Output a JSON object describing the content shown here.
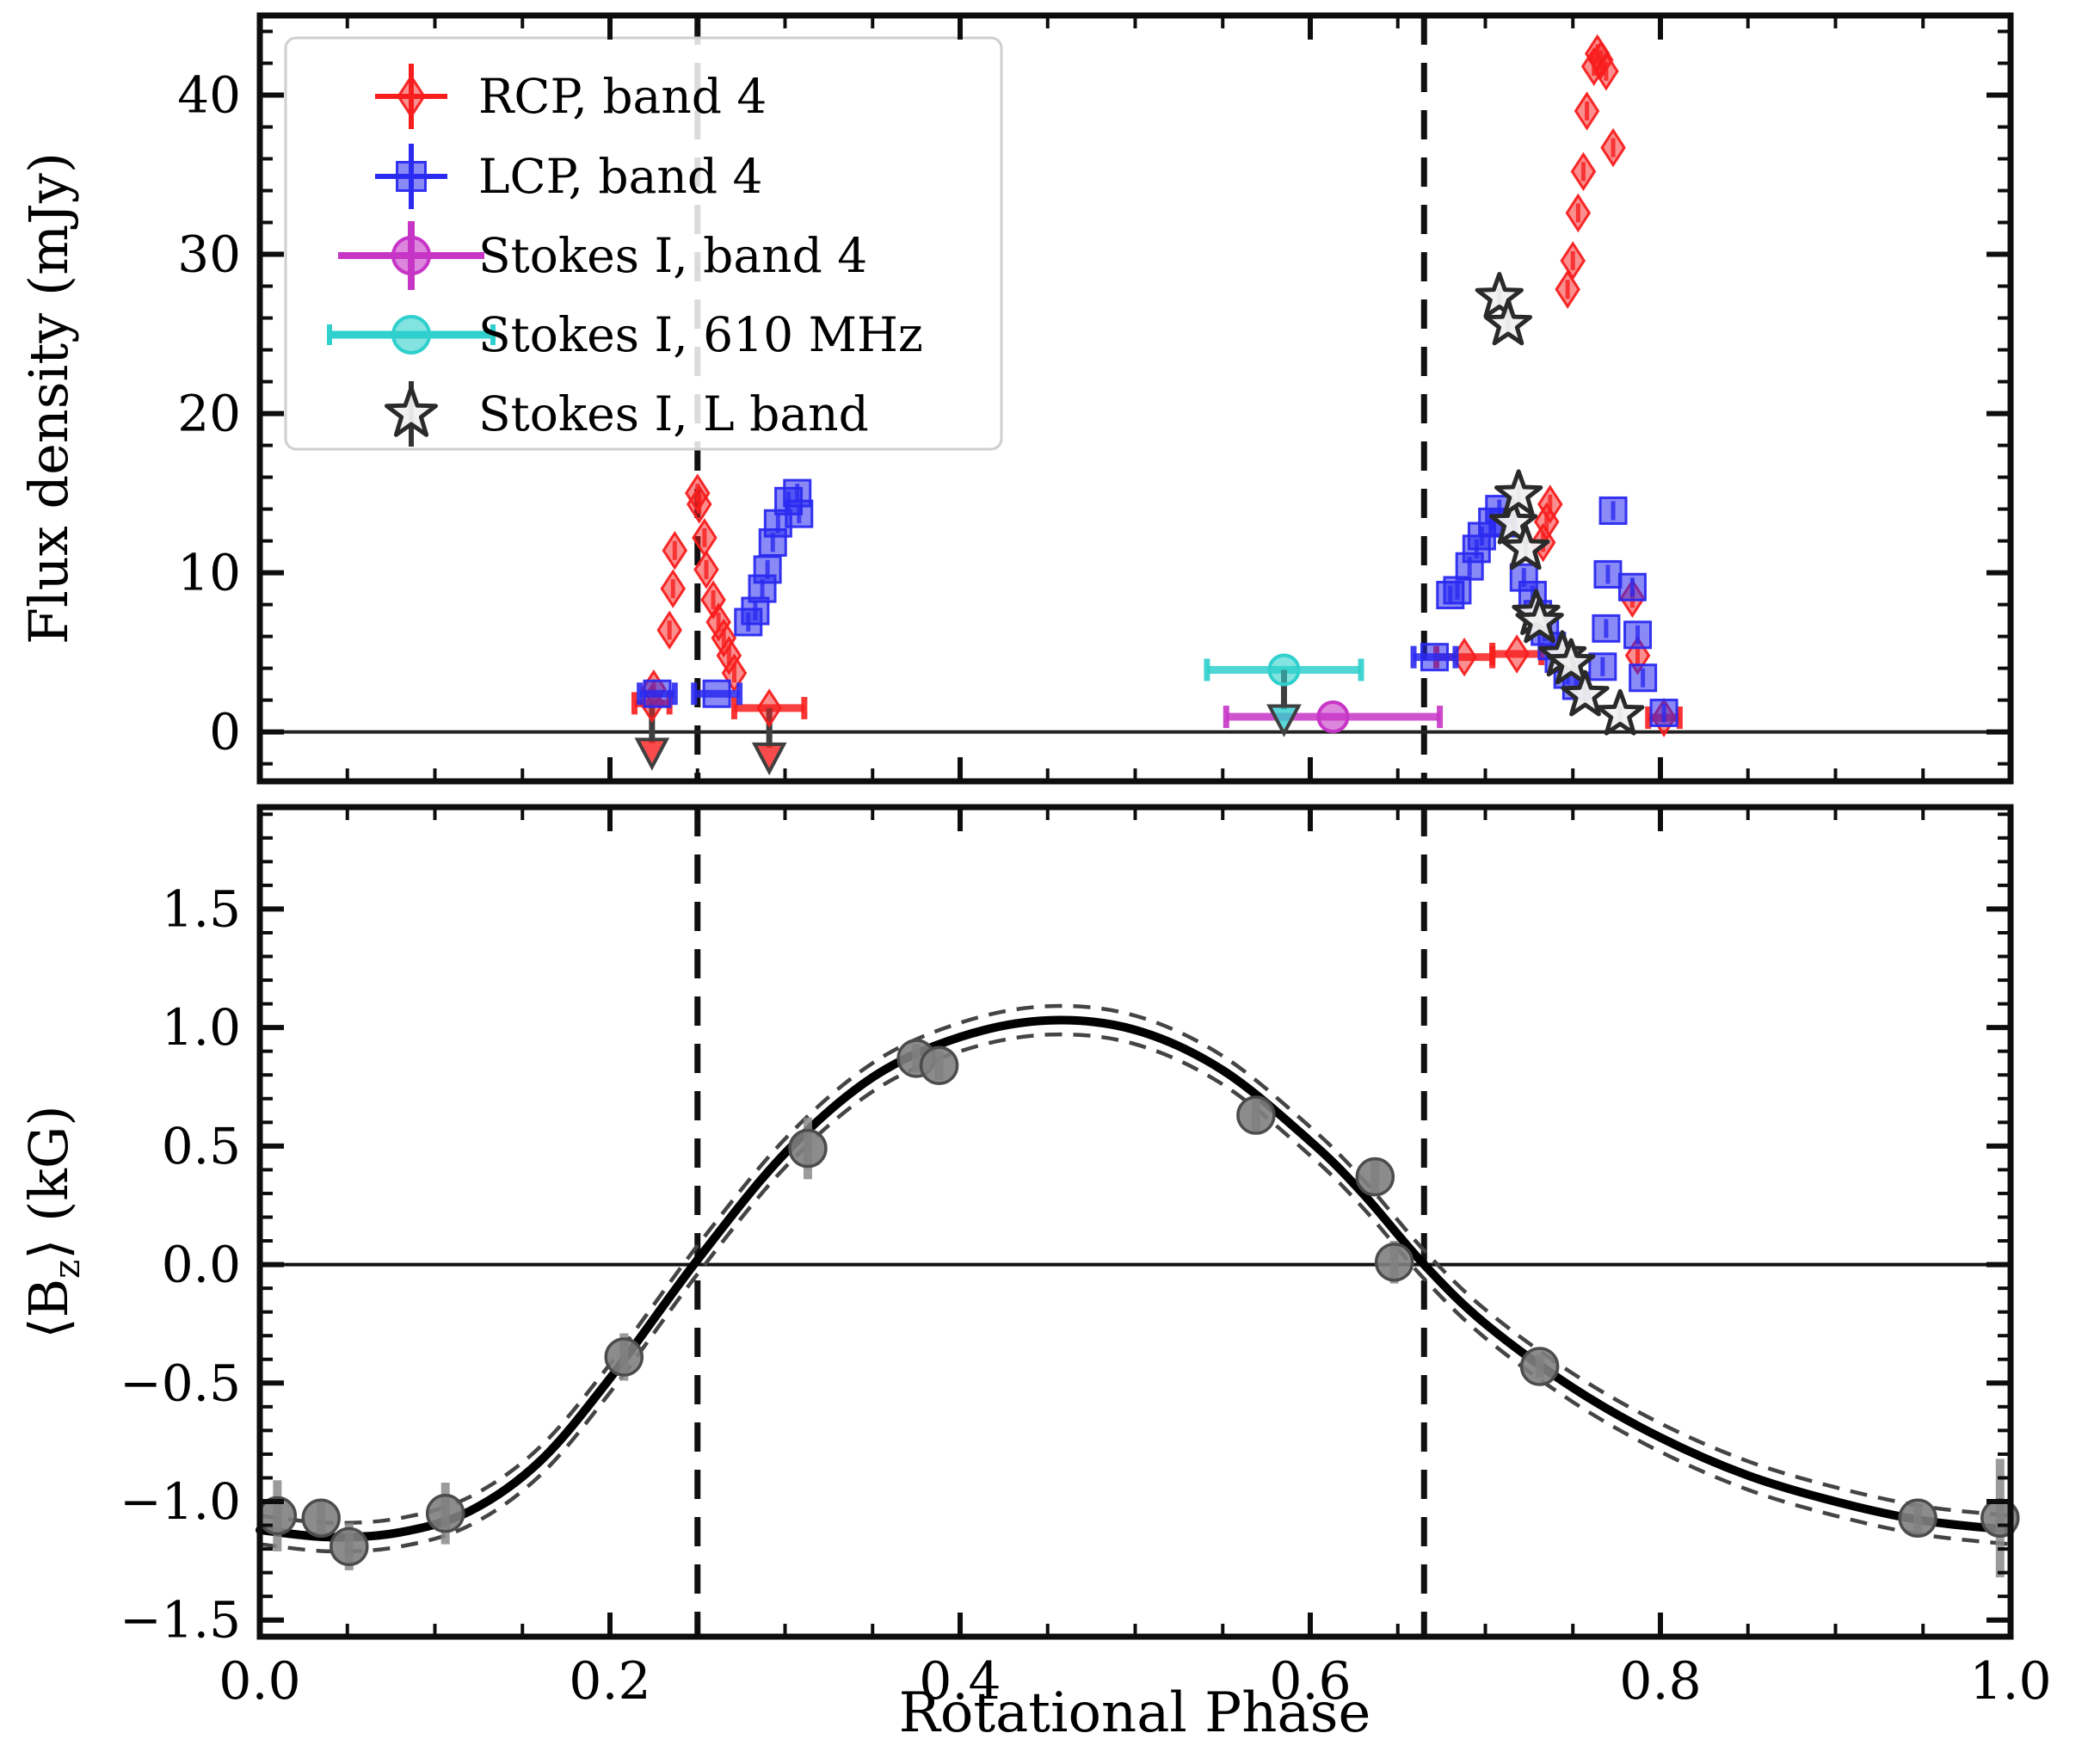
{
  "figure": {
    "ylabel_top": "Flux density (mJy)",
    "ylabel_bottom_parts": [
      "⟨B",
      "z",
      "⟩ (kG)"
    ],
    "xlabel": "Rotational Phase"
  },
  "legend": {
    "items": [
      {
        "id": "rcp-band4",
        "label": "RCP, band 4",
        "marker": "diamond",
        "color": "#f81e1e"
      },
      {
        "id": "lcp-band4",
        "label": "LCP, band 4",
        "marker": "square",
        "color": "#2a2af0"
      },
      {
        "id": "stokesI-band4",
        "label": "Stokes I, band 4",
        "marker": "circle",
        "color": "#c735c7"
      },
      {
        "id": "stokesI-610mhz",
        "label": "Stokes I, 610 MHz",
        "marker": "circle",
        "color": "#2fd0cd"
      },
      {
        "id": "stokesI-lband",
        "label": "Stokes I, L band",
        "marker": "star",
        "color": "#f0f0f0"
      }
    ]
  },
  "chart_data": [
    {
      "type": "scatter",
      "panel": "top",
      "title": "",
      "ylabel": "Flux density (mJy)",
      "xlabel": "",
      "xlim": [
        0.0,
        1.0
      ],
      "ylim": [
        -3.1,
        45.0
      ],
      "yticks": [
        0,
        10,
        20,
        30,
        40
      ],
      "ytick_labels": [
        "0",
        "10",
        "20",
        "30",
        "40"
      ],
      "xticks": [
        0.0,
        0.2,
        0.4,
        0.6,
        0.8,
        1.0
      ],
      "x_minor_step": 0.05,
      "y_minor_step": 2,
      "grid": false,
      "zero_line": 0.0,
      "vlines": [
        0.25,
        0.665
      ],
      "legend_position": "upper left",
      "series": [
        {
          "name": "RCP, band 4",
          "marker": "diamond",
          "color": "#f81e1e",
          "points": [
            [
              0.225,
              2.7
            ],
            [
              0.234,
              6.4
            ],
            [
              0.236,
              9.0
            ],
            [
              0.237,
              11.4
            ],
            [
              0.25,
              15.0
            ],
            [
              0.251,
              14.3
            ],
            [
              0.254,
              12.2
            ],
            [
              0.255,
              10.2
            ],
            [
              0.259,
              8.3
            ],
            [
              0.262,
              6.9
            ],
            [
              0.265,
              5.9
            ],
            [
              0.268,
              4.8
            ],
            [
              0.271,
              3.7
            ],
            [
              0.733,
              11.9
            ],
            [
              0.735,
              13.2
            ],
            [
              0.737,
              14.3
            ],
            [
              0.747,
              27.8
            ],
            [
              0.75,
              29.6
            ],
            [
              0.753,
              32.6
            ],
            [
              0.756,
              35.2
            ],
            [
              0.758,
              39.0
            ],
            [
              0.762,
              41.8
            ],
            [
              0.764,
              42.6
            ],
            [
              0.766,
              42.2
            ],
            [
              0.769,
              41.5
            ],
            [
              0.773,
              36.7
            ],
            [
              0.784,
              8.4
            ],
            [
              0.787,
              4.8
            ]
          ],
          "xerr_points": [
            [
              0.688,
              4.7,
              0.016
            ],
            [
              0.718,
              4.9,
              0.014
            ],
            [
              0.802,
              0.9,
              0.009
            ]
          ],
          "upper_limits": [
            [
              0.224,
              1.8,
              0.01
            ],
            [
              0.291,
              1.5,
              0.02
            ]
          ]
        },
        {
          "name": "LCP, band 4",
          "marker": "square",
          "color": "#2a2af0",
          "points": [
            [
              0.279,
              6.9
            ],
            [
              0.283,
              7.6
            ],
            [
              0.287,
              9.0
            ],
            [
              0.29,
              10.2
            ],
            [
              0.293,
              11.9
            ],
            [
              0.296,
              13.1
            ],
            [
              0.302,
              14.5
            ],
            [
              0.307,
              15.0
            ],
            [
              0.308,
              13.7
            ],
            [
              0.68,
              8.6
            ],
            [
              0.684,
              8.9
            ],
            [
              0.691,
              10.4
            ],
            [
              0.695,
              11.5
            ],
            [
              0.698,
              12.3
            ],
            [
              0.704,
              13.2
            ],
            [
              0.708,
              14.0
            ],
            [
              0.71,
              13.1
            ],
            [
              0.722,
              9.7
            ],
            [
              0.727,
              8.6
            ],
            [
              0.73,
              7.4
            ],
            [
              0.734,
              6.3
            ],
            [
              0.738,
              5.4
            ],
            [
              0.742,
              4.6
            ],
            [
              0.747,
              3.6
            ],
            [
              0.752,
              2.9
            ],
            [
              0.767,
              4.1
            ],
            [
              0.769,
              6.5
            ],
            [
              0.77,
              9.9
            ],
            [
              0.773,
              13.9
            ],
            [
              0.784,
              9.1
            ],
            [
              0.787,
              6.1
            ],
            [
              0.79,
              3.4
            ],
            [
              0.802,
              1.2
            ]
          ],
          "xerr_points": [
            [
              0.227,
              2.4,
              0.01
            ],
            [
              0.261,
              2.4,
              0.013
            ],
            [
              0.671,
              4.7,
              0.012
            ]
          ],
          "upper_limits": []
        },
        {
          "name": "Stokes I, band 4",
          "marker": "circle",
          "color": "#c735c7",
          "points": [],
          "xerr_points": [
            [
              0.613,
              0.95,
              0.061
            ]
          ],
          "upper_limits": []
        },
        {
          "name": "Stokes I, 610 MHz",
          "marker": "circle",
          "color": "#2fd0cd",
          "points": [],
          "xerr_points": [],
          "upper_limits": [
            [
              0.585,
              3.9,
              0.044
            ]
          ]
        },
        {
          "name": "Stokes I, L band",
          "marker": "star",
          "color": "#f0f0f0",
          "edge": "#2a2a2a",
          "points": [
            [
              0.708,
              27.3
            ],
            [
              0.713,
              25.6
            ],
            [
              0.716,
              13.1
            ],
            [
              0.719,
              14.9
            ],
            [
              0.723,
              11.5
            ],
            [
              0.729,
              7.4
            ],
            [
              0.731,
              6.9
            ],
            [
              0.744,
              4.8
            ],
            [
              0.749,
              4.3
            ],
            [
              0.757,
              2.3
            ],
            [
              0.777,
              1.1
            ]
          ],
          "xerr_points": [],
          "upper_limits": []
        }
      ]
    },
    {
      "type": "scatter+line",
      "panel": "bottom",
      "title": "",
      "ylabel": "⟨Bz⟩ (kG)",
      "xlabel": "Rotational Phase",
      "xlim": [
        0.0,
        1.0
      ],
      "ylim": [
        -1.57,
        1.93
      ],
      "yticks": [
        -1.5,
        -1.0,
        -0.5,
        0.0,
        0.5,
        1.0,
        1.5
      ],
      "ytick_labels": [
        "−1.5",
        "−1.0",
        "−0.5",
        "0.0",
        "0.5",
        "1.0",
        "1.5"
      ],
      "xticks": [
        0.0,
        0.2,
        0.4,
        0.6,
        0.8,
        1.0
      ],
      "xtick_labels": [
        "0.0",
        "0.2",
        "0.4",
        "0.6",
        "0.8",
        "1.0"
      ],
      "x_minor_step": 0.05,
      "y_minor_step": 0.1,
      "grid": false,
      "zero_line": 0.0,
      "vlines": [
        0.25,
        0.665
      ],
      "points_name": "Bz measurements",
      "point_color": "#7f7f7f",
      "point_edge": "#4c4c4c",
      "points": [
        [
          0.01,
          -1.06,
          0.15
        ],
        [
          0.035,
          -1.07,
          0.08
        ],
        [
          0.051,
          -1.19,
          0.1
        ],
        [
          0.106,
          -1.05,
          0.13
        ],
        [
          0.208,
          -0.39,
          0.1
        ],
        [
          0.313,
          0.49,
          0.13
        ],
        [
          0.375,
          0.87,
          0.06
        ],
        [
          0.388,
          0.84,
          0.06
        ],
        [
          0.569,
          0.63,
          0.07
        ],
        [
          0.637,
          0.37,
          0.08
        ],
        [
          0.648,
          0.01,
          0.09
        ],
        [
          0.731,
          -0.43,
          0.05
        ],
        [
          0.947,
          -1.07,
          0.06
        ],
        [
          0.994,
          -1.07,
          0.25
        ]
      ],
      "curve_name": "sinusoidal fit",
      "curve": [
        [
          0.0,
          -1.12
        ],
        [
          0.04,
          -1.15
        ],
        [
          0.08,
          -1.13
        ],
        [
          0.12,
          -1.04
        ],
        [
          0.16,
          -0.83
        ],
        [
          0.2,
          -0.48
        ],
        [
          0.25,
          0.02
        ],
        [
          0.3,
          0.47
        ],
        [
          0.35,
          0.79
        ],
        [
          0.4,
          0.96
        ],
        [
          0.45,
          1.03
        ],
        [
          0.5,
          0.99
        ],
        [
          0.55,
          0.82
        ],
        [
          0.6,
          0.52
        ],
        [
          0.63,
          0.3
        ],
        [
          0.665,
          0.0
        ],
        [
          0.7,
          -0.25
        ],
        [
          0.75,
          -0.52
        ],
        [
          0.8,
          -0.73
        ],
        [
          0.85,
          -0.89
        ],
        [
          0.9,
          -1.0
        ],
        [
          0.95,
          -1.08
        ],
        [
          1.0,
          -1.12
        ]
      ],
      "band_halfwidth": 0.06
    }
  ],
  "style": {
    "dash_line_color": "#111111",
    "curve_color": "#000000",
    "band_color": "#444444",
    "spine_color": "#0d0d0d",
    "arrow_color": "#3f3f3f"
  }
}
